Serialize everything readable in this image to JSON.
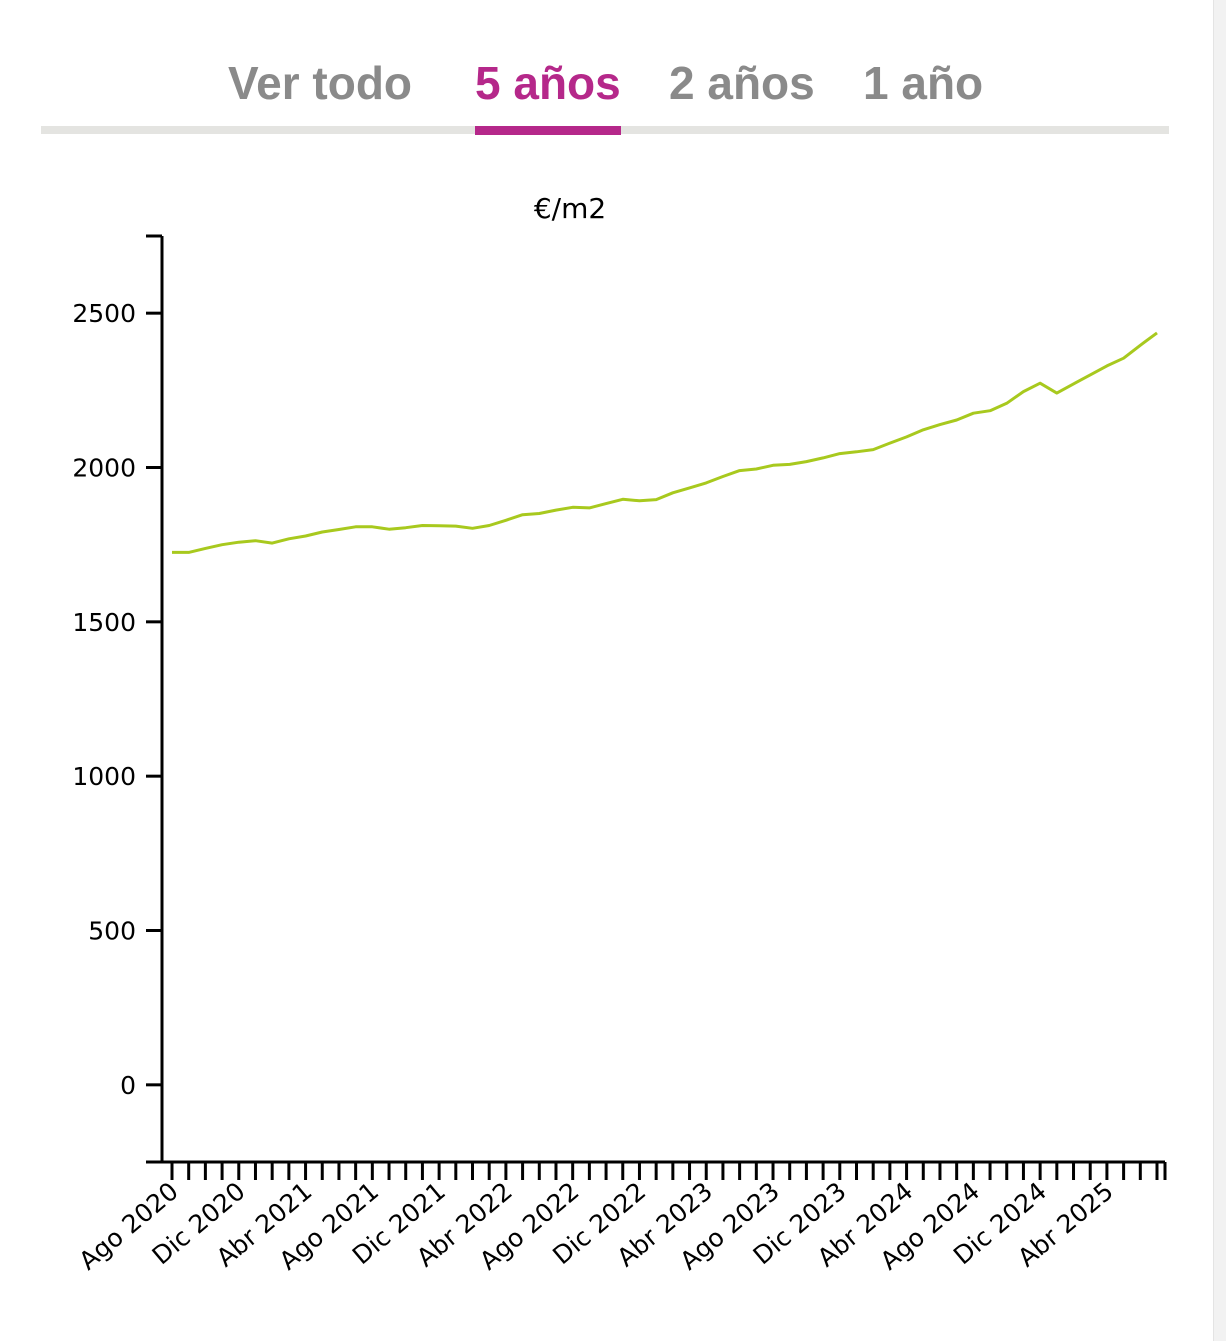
{
  "tabs": [
    {
      "label": "Ver todo",
      "active": false
    },
    {
      "label": "5 años",
      "active": true
    },
    {
      "label": "2 años",
      "active": false
    },
    {
      "label": "1 año",
      "active": false
    }
  ],
  "colors": {
    "accent": "#b5288a",
    "line": "#a8c91e",
    "inactive_tab": "#8a8a8a"
  },
  "chart_data": {
    "type": "line",
    "title": "€/m2",
    "xlabel": "",
    "ylabel": "€/m2",
    "ylim": [
      -250,
      2750
    ],
    "yticks": [
      0,
      500,
      1000,
      1500,
      2000,
      2500
    ],
    "x_start": "Ago 2020",
    "n_months": 60,
    "xtick_labels": [
      "Ago 2020",
      "Dic 2020",
      "Abr 2021",
      "Ago 2021",
      "Dic 2021",
      "Abr 2022",
      "Ago 2022",
      "Dic 2022",
      "Abr 2023",
      "Ago 2023",
      "Dic 2023",
      "Abr 2024",
      "Ago 2024",
      "Dic 2024",
      "Abr 2025"
    ],
    "series": [
      {
        "name": "€/m2",
        "values": [
          1725,
          1725,
          1738,
          1750,
          1758,
          1763,
          1755,
          1769,
          1778,
          1791,
          1799,
          1808,
          1808,
          1800,
          1805,
          1812,
          1811,
          1810,
          1803,
          1812,
          1829,
          1847,
          1851,
          1862,
          1871,
          1869,
          1883,
          1897,
          1892,
          1896,
          1918,
          1934,
          1950,
          1971,
          1990,
          1995,
          2007,
          2010,
          2019,
          2031,
          2045,
          2051,
          2058,
          2079,
          2099,
          2122,
          2139,
          2154,
          2176,
          2184,
          2208,
          2246,
          2273,
          2241,
          2271,
          2300,
          2329,
          2354,
          2396,
          2436
        ]
      }
    ],
    "grid": false,
    "legend": "none"
  }
}
